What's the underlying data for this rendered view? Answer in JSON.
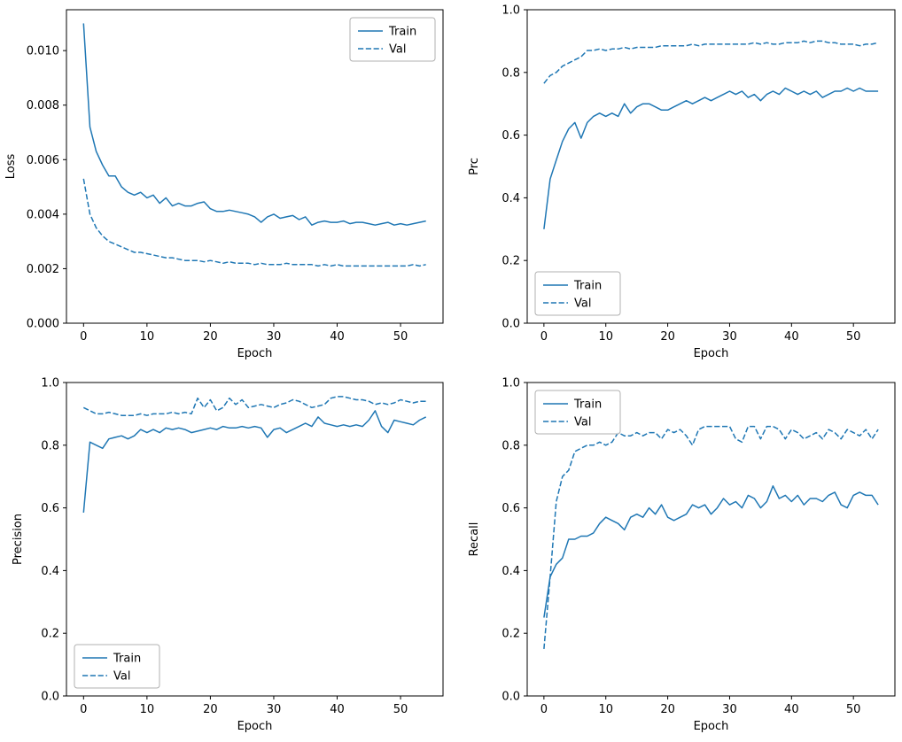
{
  "figure": {
    "background": "#ffffff",
    "line_color": "#1f77b4",
    "axis_color": "#000000",
    "legend_edge_color": "#b0b0b0"
  },
  "chart_data": [
    {
      "type": "line",
      "title": "",
      "xlabel": "Epoch",
      "ylabel": "Loss",
      "xlim": [
        -2.7,
        56.7
      ],
      "ylim": [
        0,
        0.0115
      ],
      "xticks": [
        0,
        10,
        20,
        30,
        40,
        50
      ],
      "xtick_labels": [
        "0",
        "10",
        "20",
        "30",
        "40",
        "50"
      ],
      "yticks": [
        0,
        0.002,
        0.004,
        0.006,
        0.008,
        0.01
      ],
      "ytick_labels": [
        "0.000",
        "0.002",
        "0.004",
        "0.006",
        "0.008",
        "0.010"
      ],
      "grid": false,
      "legend_loc": "upper-right",
      "x": {
        "label": "Epoch",
        "start": 0,
        "step": 1,
        "count": 55
      },
      "series": [
        {
          "name": "Train",
          "line_style": "solid",
          "values": [
            0.011,
            0.0072,
            0.0063,
            0.0058,
            0.0054,
            0.0054,
            0.005,
            0.0048,
            0.0047,
            0.0048,
            0.0046,
            0.0047,
            0.0044,
            0.0046,
            0.0043,
            0.0044,
            0.0043,
            0.0043,
            0.0044,
            0.00445,
            0.0042,
            0.0041,
            0.0041,
            0.00415,
            0.0041,
            0.00405,
            0.004,
            0.0039,
            0.0037,
            0.0039,
            0.004,
            0.00385,
            0.0039,
            0.00395,
            0.0038,
            0.0039,
            0.0036,
            0.0037,
            0.00375,
            0.0037,
            0.0037,
            0.00375,
            0.00365,
            0.0037,
            0.0037,
            0.00365,
            0.0036,
            0.00365,
            0.0037,
            0.0036,
            0.00365,
            0.0036,
            0.00365,
            0.0037,
            0.00375
          ]
        },
        {
          "name": "Val",
          "line_style": "dashed",
          "values": [
            0.0053,
            0.004,
            0.0035,
            0.0032,
            0.003,
            0.0029,
            0.0028,
            0.0027,
            0.0026,
            0.0026,
            0.00255,
            0.0025,
            0.00245,
            0.0024,
            0.0024,
            0.00235,
            0.0023,
            0.0023,
            0.0023,
            0.00225,
            0.0023,
            0.00225,
            0.0022,
            0.00225,
            0.0022,
            0.0022,
            0.0022,
            0.00215,
            0.0022,
            0.00215,
            0.00215,
            0.00215,
            0.0022,
            0.00215,
            0.00215,
            0.00215,
            0.00215,
            0.0021,
            0.00215,
            0.0021,
            0.00215,
            0.0021,
            0.0021,
            0.0021,
            0.0021,
            0.0021,
            0.0021,
            0.0021,
            0.0021,
            0.0021,
            0.0021,
            0.0021,
            0.00215,
            0.0021,
            0.00215
          ]
        }
      ]
    },
    {
      "type": "line",
      "title": "",
      "xlabel": "Epoch",
      "ylabel": "Prc",
      "xlim": [
        -2.7,
        56.7
      ],
      "ylim": [
        0,
        1.0
      ],
      "xticks": [
        0,
        10,
        20,
        30,
        40,
        50
      ],
      "xtick_labels": [
        "0",
        "10",
        "20",
        "30",
        "40",
        "50"
      ],
      "yticks": [
        0,
        0.2,
        0.4,
        0.6,
        0.8,
        1.0
      ],
      "ytick_labels": [
        "0.0",
        "0.2",
        "0.4",
        "0.6",
        "0.8",
        "1.0"
      ],
      "grid": false,
      "legend_loc": "lower-left",
      "x": {
        "label": "Epoch",
        "start": 0,
        "step": 1,
        "count": 55
      },
      "series": [
        {
          "name": "Train",
          "line_style": "solid",
          "values": [
            0.3,
            0.46,
            0.52,
            0.58,
            0.62,
            0.64,
            0.59,
            0.64,
            0.66,
            0.67,
            0.66,
            0.67,
            0.66,
            0.7,
            0.67,
            0.69,
            0.7,
            0.7,
            0.69,
            0.68,
            0.68,
            0.69,
            0.7,
            0.71,
            0.7,
            0.71,
            0.72,
            0.71,
            0.72,
            0.73,
            0.74,
            0.73,
            0.74,
            0.72,
            0.73,
            0.71,
            0.73,
            0.74,
            0.73,
            0.75,
            0.74,
            0.73,
            0.74,
            0.73,
            0.74,
            0.72,
            0.73,
            0.74,
            0.74,
            0.75,
            0.74,
            0.75,
            0.74,
            0.74,
            0.74
          ]
        },
        {
          "name": "Val",
          "line_style": "dashed",
          "values": [
            0.765,
            0.79,
            0.8,
            0.82,
            0.83,
            0.84,
            0.85,
            0.87,
            0.87,
            0.875,
            0.87,
            0.875,
            0.875,
            0.88,
            0.875,
            0.88,
            0.88,
            0.88,
            0.88,
            0.885,
            0.885,
            0.885,
            0.885,
            0.885,
            0.89,
            0.885,
            0.89,
            0.89,
            0.89,
            0.89,
            0.89,
            0.89,
            0.89,
            0.89,
            0.895,
            0.89,
            0.895,
            0.89,
            0.89,
            0.895,
            0.895,
            0.895,
            0.9,
            0.895,
            0.9,
            0.9,
            0.895,
            0.895,
            0.89,
            0.89,
            0.89,
            0.885,
            0.89,
            0.89,
            0.895
          ]
        }
      ]
    },
    {
      "type": "line",
      "title": "",
      "xlabel": "Epoch",
      "ylabel": "Precision",
      "xlim": [
        -2.7,
        56.7
      ],
      "ylim": [
        0,
        1.0
      ],
      "xticks": [
        0,
        10,
        20,
        30,
        40,
        50
      ],
      "xtick_labels": [
        "0",
        "10",
        "20",
        "30",
        "40",
        "50"
      ],
      "yticks": [
        0,
        0.2,
        0.4,
        0.6,
        0.8,
        1.0
      ],
      "ytick_labels": [
        "0.0",
        "0.2",
        "0.4",
        "0.6",
        "0.8",
        "1.0"
      ],
      "grid": false,
      "legend_loc": "lower-left",
      "x": {
        "label": "Epoch",
        "start": 0,
        "step": 1,
        "count": 55
      },
      "series": [
        {
          "name": "Train",
          "line_style": "solid",
          "values": [
            0.585,
            0.81,
            0.8,
            0.79,
            0.82,
            0.825,
            0.83,
            0.82,
            0.83,
            0.85,
            0.84,
            0.85,
            0.84,
            0.855,
            0.85,
            0.855,
            0.85,
            0.84,
            0.845,
            0.85,
            0.855,
            0.85,
            0.86,
            0.855,
            0.855,
            0.86,
            0.855,
            0.86,
            0.855,
            0.825,
            0.85,
            0.855,
            0.84,
            0.85,
            0.86,
            0.87,
            0.86,
            0.89,
            0.87,
            0.865,
            0.86,
            0.865,
            0.86,
            0.865,
            0.86,
            0.88,
            0.91,
            0.86,
            0.84,
            0.88,
            0.875,
            0.87,
            0.865,
            0.88,
            0.89
          ]
        },
        {
          "name": "Val",
          "line_style": "dashed",
          "values": [
            0.92,
            0.91,
            0.9,
            0.9,
            0.905,
            0.9,
            0.895,
            0.895,
            0.895,
            0.9,
            0.895,
            0.9,
            0.9,
            0.9,
            0.905,
            0.9,
            0.905,
            0.9,
            0.95,
            0.92,
            0.945,
            0.91,
            0.92,
            0.95,
            0.93,
            0.945,
            0.92,
            0.925,
            0.93,
            0.925,
            0.92,
            0.93,
            0.935,
            0.945,
            0.94,
            0.93,
            0.92,
            0.925,
            0.93,
            0.95,
            0.955,
            0.955,
            0.95,
            0.945,
            0.945,
            0.94,
            0.93,
            0.935,
            0.93,
            0.935,
            0.945,
            0.94,
            0.935,
            0.94,
            0.94
          ]
        }
      ]
    },
    {
      "type": "line",
      "title": "",
      "xlabel": "Epoch",
      "ylabel": "Recall",
      "xlim": [
        -2.7,
        56.7
      ],
      "ylim": [
        0,
        1.0
      ],
      "xticks": [
        0,
        10,
        20,
        30,
        40,
        50
      ],
      "xtick_labels": [
        "0",
        "10",
        "20",
        "30",
        "40",
        "50"
      ],
      "yticks": [
        0,
        0.2,
        0.4,
        0.6,
        0.8,
        1.0
      ],
      "ytick_labels": [
        "0.0",
        "0.2",
        "0.4",
        "0.6",
        "0.8",
        "1.0"
      ],
      "grid": false,
      "legend_loc": "upper-left",
      "x": {
        "label": "Epoch",
        "start": 0,
        "step": 1,
        "count": 55
      },
      "series": [
        {
          "name": "Train",
          "line_style": "solid",
          "values": [
            0.25,
            0.38,
            0.42,
            0.44,
            0.5,
            0.5,
            0.51,
            0.51,
            0.52,
            0.55,
            0.57,
            0.56,
            0.55,
            0.53,
            0.57,
            0.58,
            0.57,
            0.6,
            0.58,
            0.61,
            0.57,
            0.56,
            0.57,
            0.58,
            0.61,
            0.6,
            0.61,
            0.58,
            0.6,
            0.63,
            0.61,
            0.62,
            0.6,
            0.64,
            0.63,
            0.6,
            0.62,
            0.67,
            0.63,
            0.64,
            0.62,
            0.64,
            0.61,
            0.63,
            0.63,
            0.62,
            0.64,
            0.65,
            0.61,
            0.6,
            0.64,
            0.65,
            0.64,
            0.64,
            0.61
          ]
        },
        {
          "name": "Val",
          "line_style": "dashed",
          "values": [
            0.15,
            0.38,
            0.62,
            0.7,
            0.72,
            0.78,
            0.79,
            0.8,
            0.8,
            0.81,
            0.8,
            0.81,
            0.84,
            0.83,
            0.83,
            0.84,
            0.83,
            0.84,
            0.84,
            0.82,
            0.85,
            0.84,
            0.85,
            0.83,
            0.8,
            0.85,
            0.86,
            0.86,
            0.86,
            0.86,
            0.86,
            0.82,
            0.81,
            0.86,
            0.86,
            0.82,
            0.86,
            0.86,
            0.85,
            0.82,
            0.85,
            0.84,
            0.82,
            0.83,
            0.84,
            0.82,
            0.85,
            0.84,
            0.82,
            0.85,
            0.84,
            0.83,
            0.85,
            0.82,
            0.85
          ]
        }
      ]
    }
  ]
}
